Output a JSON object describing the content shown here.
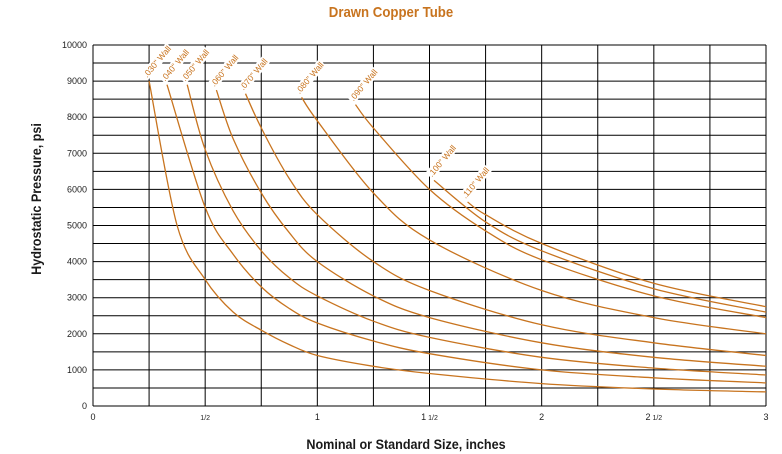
{
  "chart_data": {
    "type": "line",
    "title": "Drawn Copper Tube",
    "xlabel": "Nominal or Standard Size, inches",
    "ylabel": "Hydrostatic Pressure, psi",
    "xlim": [
      0,
      3
    ],
    "ylim": [
      0,
      10000
    ],
    "grid": true,
    "x_ticks": [
      {
        "value": 0,
        "whole": "0",
        "frac": ""
      },
      {
        "value": 0.5,
        "whole": "",
        "frac": "1/2"
      },
      {
        "value": 1,
        "whole": "1",
        "frac": ""
      },
      {
        "value": 1.5,
        "whole": "1",
        "frac": "1/2"
      },
      {
        "value": 2,
        "whole": "2",
        "frac": ""
      },
      {
        "value": 2.5,
        "whole": "2",
        "frac": "1/2"
      },
      {
        "value": 3,
        "whole": "3",
        "frac": ""
      }
    ],
    "y_ticks": [
      "0",
      "1000",
      "2000",
      "3000",
      "4000",
      "5000",
      "6000",
      "7000",
      "8000",
      "9000",
      "10000"
    ],
    "series_color": "#c8741f",
    "series": [
      {
        "name": ".030\" Wall",
        "x": [
          0.25,
          0.375,
          0.5,
          0.625,
          0.75,
          0.875,
          1,
          1.25,
          1.5,
          2,
          2.5,
          3
        ],
        "values": [
          9000,
          5000,
          3500,
          2600,
          2100,
          1700,
          1400,
          1100,
          900,
          620,
          470,
          390
        ]
      },
      {
        "name": ".040\" Wall",
        "x": [
          0.33,
          0.5,
          0.625,
          0.75,
          0.875,
          1,
          1.25,
          1.5,
          2,
          2.5,
          3
        ],
        "values": [
          8900,
          5500,
          4200,
          3300,
          2700,
          2300,
          1800,
          1450,
          1000,
          780,
          640
        ]
      },
      {
        "name": ".050\" Wall",
        "x": [
          0.42,
          0.5,
          0.625,
          0.75,
          0.875,
          1,
          1.25,
          1.5,
          2,
          2.5,
          3
        ],
        "values": [
          8900,
          7100,
          5400,
          4300,
          3550,
          3050,
          2350,
          1900,
          1350,
          1050,
          860
        ]
      },
      {
        "name": ".060\" Wall",
        "x": [
          0.55,
          0.625,
          0.75,
          0.875,
          1,
          1.25,
          1.5,
          2,
          2.5,
          3
        ],
        "values": [
          8750,
          7400,
          5900,
          4800,
          4000,
          3050,
          2450,
          1750,
          1350,
          1100
        ]
      },
      {
        "name": ".070\" Wall",
        "x": [
          0.68,
          0.75,
          0.875,
          1,
          1.25,
          1.5,
          2,
          2.5,
          3
        ],
        "values": [
          8650,
          7700,
          6300,
          5300,
          4000,
          3200,
          2250,
          1750,
          1400
        ]
      },
      {
        "name": ".080\" Wall",
        "x": [
          0.93,
          1,
          1.25,
          1.5,
          2,
          2.5,
          3
        ],
        "values": [
          8550,
          7900,
          5900,
          4600,
          3200,
          2450,
          2000
        ]
      },
      {
        "name": ".090\" Wall",
        "x": [
          1.17,
          1.25,
          1.5,
          1.75,
          2,
          2.5,
          3
        ],
        "values": [
          8350,
          7700,
          6000,
          4850,
          4050,
          3050,
          2450
        ]
      },
      {
        "name": ".100\" Wall",
        "x": [
          1.52,
          1.75,
          2,
          2.5,
          3
        ],
        "values": [
          6250,
          5100,
          4300,
          3250,
          2600
        ]
      },
      {
        "name": ".110\" Wall",
        "x": [
          1.67,
          1.75,
          2,
          2.5,
          3
        ],
        "values": [
          5650,
          5300,
          4500,
          3400,
          2750
        ]
      }
    ]
  }
}
